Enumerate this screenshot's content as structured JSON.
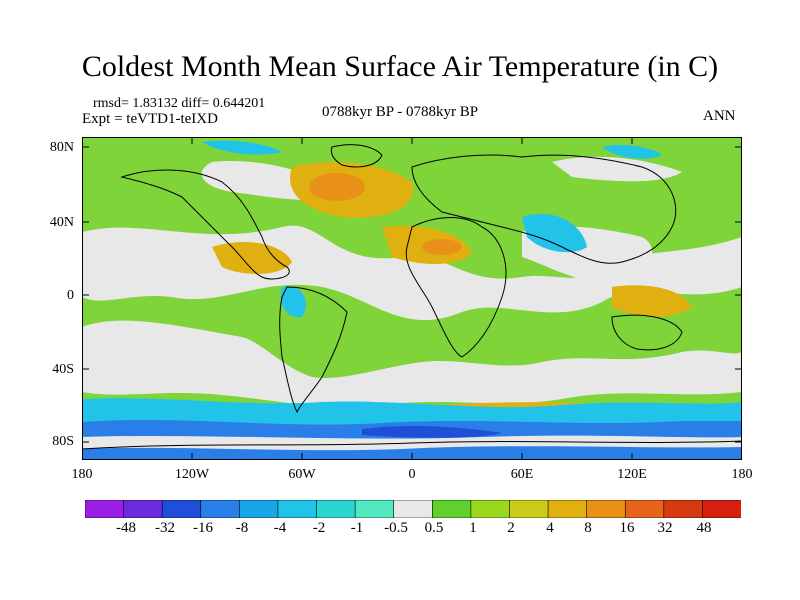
{
  "header": {
    "title": "Coldest Month Mean Surface Air Temperature (in C)",
    "stats": "rmsd= 1.83132  diff= 0.644201",
    "experiment": "Expt = teVTD1-teIXD",
    "period": "0788kyr BP - 0788kyr BP",
    "season": "ANN"
  },
  "axes": {
    "lat_labels": [
      "80N",
      "40N",
      "0",
      "40S",
      "80S"
    ],
    "lon_labels": [
      "180",
      "120W",
      "60W",
      "0",
      "60E",
      "120E",
      "180"
    ]
  },
  "legend": {
    "labels": [
      "-48",
      "-32",
      "-16",
      "-8",
      "-4",
      "-2",
      "-1",
      "-0.5",
      "0.5",
      "1",
      "2",
      "4",
      "8",
      "16",
      "32",
      "48"
    ],
    "colors": [
      "#9b1fe6",
      "#6a2be0",
      "#1f4fd8",
      "#2a7ee8",
      "#18a6e8",
      "#21c4e8",
      "#28d8d0",
      "#52e8c0",
      "#e8e8e8",
      "#5fd02e",
      "#9ad81e",
      "#c8cc1a",
      "#e0b010",
      "#e89018",
      "#e8641a",
      "#d83a10",
      "#d82010"
    ]
  }
}
